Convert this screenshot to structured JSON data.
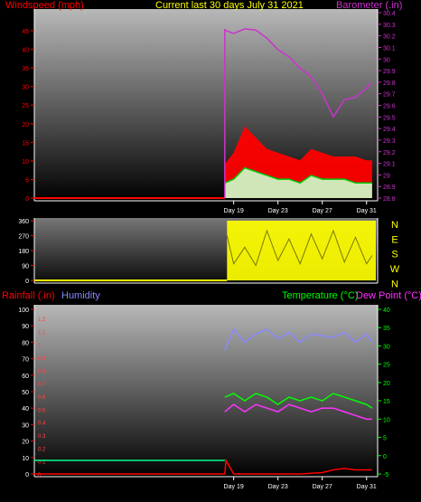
{
  "header": {
    "left_label": "Windspeed (mph)",
    "center_label": "Current last 30 days July 31 2021",
    "right_label": "Barometer (.in)"
  },
  "colors": {
    "windspeed": "#ff0000",
    "gust": "#00cc00",
    "barometer": "#cc33cc",
    "wind_dir": "#ffff00",
    "humidity": "#8888ff",
    "temperature": "#00ff00",
    "dewpoint": "#ff33ff",
    "rainfall": "#ff0000",
    "baseline": "#00ff88",
    "frame": "#ffffff"
  },
  "x_labels": [
    "Day 19",
    "Day 23",
    "Day 27",
    "Day 31"
  ],
  "chart_data": [
    {
      "type": "area",
      "name": "wind_barometer",
      "ylabel_left": "Windspeed (mph)",
      "ylabel_right": "Barometer (.in)",
      "left_ticks": [
        "0",
        "5",
        "10",
        "15",
        "20",
        "25",
        "30",
        "35",
        "40",
        "45"
      ],
      "right_ticks": [
        "28.8",
        "28.9",
        "29",
        "29.1",
        "29.2",
        "29.3",
        "29.4",
        "29.5",
        "29.6",
        "29.7",
        "29.8",
        "29.9",
        "30",
        "30.1",
        "30.2",
        "30.3",
        "30.4"
      ],
      "ylim_left": [
        0,
        50
      ],
      "ylim_right": [
        28.8,
        30.4
      ],
      "x_range_days": [
        1,
        31
      ],
      "data_start_day": 18.2,
      "series": [
        {
          "name": "Windspeed",
          "x": [
            18.2,
            19,
            20,
            21,
            22,
            23,
            24,
            25,
            26,
            27,
            28,
            29,
            30,
            31,
            31.5
          ],
          "values": [
            9,
            12,
            19,
            16,
            13,
            12,
            11,
            10,
            13,
            12,
            11,
            11,
            11,
            10,
            10
          ]
        },
        {
          "name": "Gust",
          "x": [
            18.2,
            19,
            20,
            21,
            22,
            23,
            24,
            25,
            26,
            27,
            28,
            29,
            30,
            31,
            31.5
          ],
          "values": [
            4,
            5,
            8,
            7,
            6,
            5,
            5,
            4,
            6,
            5,
            5,
            5,
            4,
            4,
            4
          ]
        },
        {
          "name": "Barometer",
          "x": [
            18.2,
            19,
            20,
            21,
            22,
            23,
            24,
            25,
            26,
            27,
            28,
            29,
            30,
            31,
            31.5
          ],
          "values": [
            30.25,
            30.22,
            30.26,
            30.25,
            30.18,
            30.08,
            30.02,
            29.92,
            29.85,
            29.7,
            29.5,
            29.65,
            29.67,
            29.75,
            29.8
          ]
        }
      ]
    },
    {
      "type": "area",
      "name": "wind_direction",
      "left_ticks": [
        "0",
        "90",
        "180",
        "270",
        "360"
      ],
      "right_ticks": [
        "N",
        "W",
        "S",
        "E",
        "N"
      ],
      "ylim": [
        0,
        360
      ],
      "series": [
        {
          "name": "Wind Direction",
          "x": [
            18.4,
            19,
            20,
            21,
            22,
            23,
            24,
            25,
            26,
            27,
            28,
            29,
            30,
            31,
            31.5
          ],
          "values": [
            270,
            100,
            200,
            90,
            300,
            120,
            250,
            100,
            280,
            130,
            300,
            110,
            260,
            100,
            150
          ]
        }
      ]
    },
    {
      "type": "line",
      "name": "rain_humidity_temp",
      "labels_left": [
        "Rainfall (.in)",
        "Humidity"
      ],
      "labels_right": [
        "Temperature (°C)",
        "Dew Point (°C)"
      ],
      "rain_ticks": [
        "0",
        "0.1",
        "0.2",
        "0.3",
        "0.4",
        "0.5",
        "0.6",
        "0.7",
        "0.8",
        "0.9",
        "1",
        "1.1",
        "1.2"
      ],
      "humidity_ticks": [
        "0",
        "10",
        "20",
        "30",
        "40",
        "50",
        "60",
        "70",
        "80",
        "90",
        "100"
      ],
      "temp_ticks": [
        "-5",
        "0",
        "5",
        "10",
        "15",
        "20",
        "25",
        "30",
        "35",
        "40"
      ],
      "ylim_rain": [
        0,
        1.2
      ],
      "ylim_humidity": [
        0,
        100
      ],
      "ylim_temp": [
        -5,
        40
      ],
      "series": [
        {
          "name": "Humidity",
          "x": [
            18.2,
            19,
            20,
            21,
            22,
            23,
            24,
            25,
            26,
            27,
            28,
            29,
            30,
            31,
            31.5
          ],
          "values": [
            75,
            88,
            80,
            85,
            88,
            82,
            86,
            80,
            85,
            84,
            83,
            86,
            80,
            85,
            80
          ]
        },
        {
          "name": "Temperature",
          "x": [
            18.2,
            19,
            20,
            21,
            22,
            23,
            24,
            25,
            26,
            27,
            28,
            29,
            30,
            31,
            31.5
          ],
          "values": [
            16,
            17,
            15,
            17,
            16,
            14,
            16,
            15,
            16,
            15,
            17,
            16,
            15,
            14,
            13
          ]
        },
        {
          "name": "Dew Point",
          "x": [
            18.2,
            19,
            20,
            21,
            22,
            23,
            24,
            25,
            26,
            27,
            28,
            29,
            30,
            31,
            31.5
          ],
          "values": [
            12,
            14,
            12,
            14,
            13,
            12,
            14,
            13,
            12,
            13,
            13,
            12,
            11,
            10,
            10
          ]
        },
        {
          "name": "Rainfall",
          "x": [
            1,
            5,
            10,
            15,
            18.2,
            18.3,
            19,
            22,
            25,
            27,
            28,
            29,
            30,
            31,
            31.5
          ],
          "values": [
            0,
            0,
            0,
            0,
            0,
            0.1,
            0,
            0,
            0,
            0.01,
            0.03,
            0.04,
            0.03,
            0.03,
            0.03
          ]
        }
      ]
    }
  ]
}
